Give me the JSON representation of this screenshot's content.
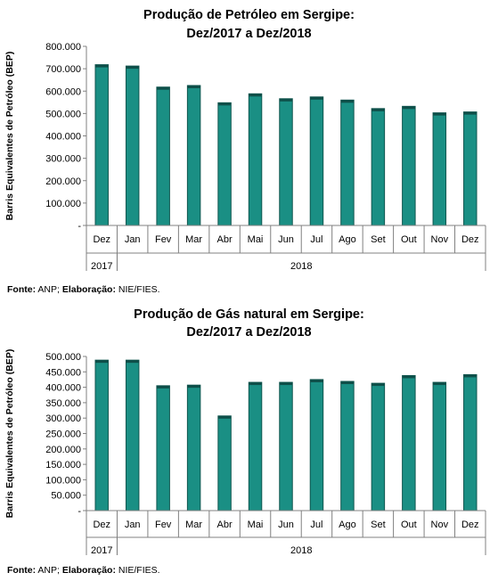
{
  "chart_data": [
    {
      "type": "bar",
      "title": "Produção de Petróleo em Sergipe:",
      "subtitle": "Dez/2017 a Dez/2018",
      "ylabel": "Barris Equivalentes de Petróleo (BEP)",
      "categories": [
        "Dez",
        "Jan",
        "Fev",
        "Mar",
        "Abr",
        "Mai",
        "Jun",
        "Jul",
        "Ago",
        "Set",
        "Out",
        "Nov",
        "Dez"
      ],
      "year_groups": [
        {
          "label": "2017",
          "span": 1
        },
        {
          "label": "2018",
          "span": 12
        }
      ],
      "values": [
        718000,
        712000,
        618000,
        625000,
        548000,
        588000,
        566000,
        574000,
        560000,
        522000,
        532000,
        503000,
        507000
      ],
      "ylim": [
        0,
        800000
      ],
      "yticks": [
        0,
        100000,
        200000,
        300000,
        400000,
        500000,
        600000,
        700000,
        800000
      ],
      "ytick_labels": [
        "-",
        "100.000",
        "200.000",
        "300.000",
        "400.000",
        "500.000",
        "600.000",
        "700.000",
        "800.000"
      ],
      "bar_color": "#1a8f84",
      "grid": false,
      "source_label": "Fonte:",
      "source_text": " ANP; ",
      "credit_label": "Elaboração:",
      "credit_text": " NIE/FIES."
    },
    {
      "type": "bar",
      "title": "Produção de Gás natural em Sergipe:",
      "subtitle": "Dez/2017 a Dez/2018",
      "ylabel": "Barris Equivalentes de Petróleo (BEP)",
      "categories": [
        "Dez",
        "Jan",
        "Fev",
        "Mar",
        "Abr",
        "Mai",
        "Jun",
        "Jul",
        "Ago",
        "Set",
        "Out",
        "Nov",
        "Dez"
      ],
      "year_groups": [
        {
          "label": "2017",
          "span": 1
        },
        {
          "label": "2018",
          "span": 12
        }
      ],
      "values": [
        488000,
        488000,
        405000,
        407000,
        307000,
        416000,
        416000,
        425000,
        419000,
        413000,
        438000,
        416000,
        441000
      ],
      "ylim": [
        0,
        500000
      ],
      "yticks": [
        0,
        50000,
        100000,
        150000,
        200000,
        250000,
        300000,
        350000,
        400000,
        450000,
        500000
      ],
      "ytick_labels": [
        "-",
        "50.000",
        "100.000",
        "150.000",
        "200.000",
        "250.000",
        "300.000",
        "350.000",
        "400.000",
        "450.000",
        "500.000"
      ],
      "bar_color": "#1a8f84",
      "grid": false,
      "source_label": "Fonte:",
      "source_text": " ANP; ",
      "credit_label": "Elaboração:",
      "credit_text": " NIE/FIES."
    }
  ]
}
